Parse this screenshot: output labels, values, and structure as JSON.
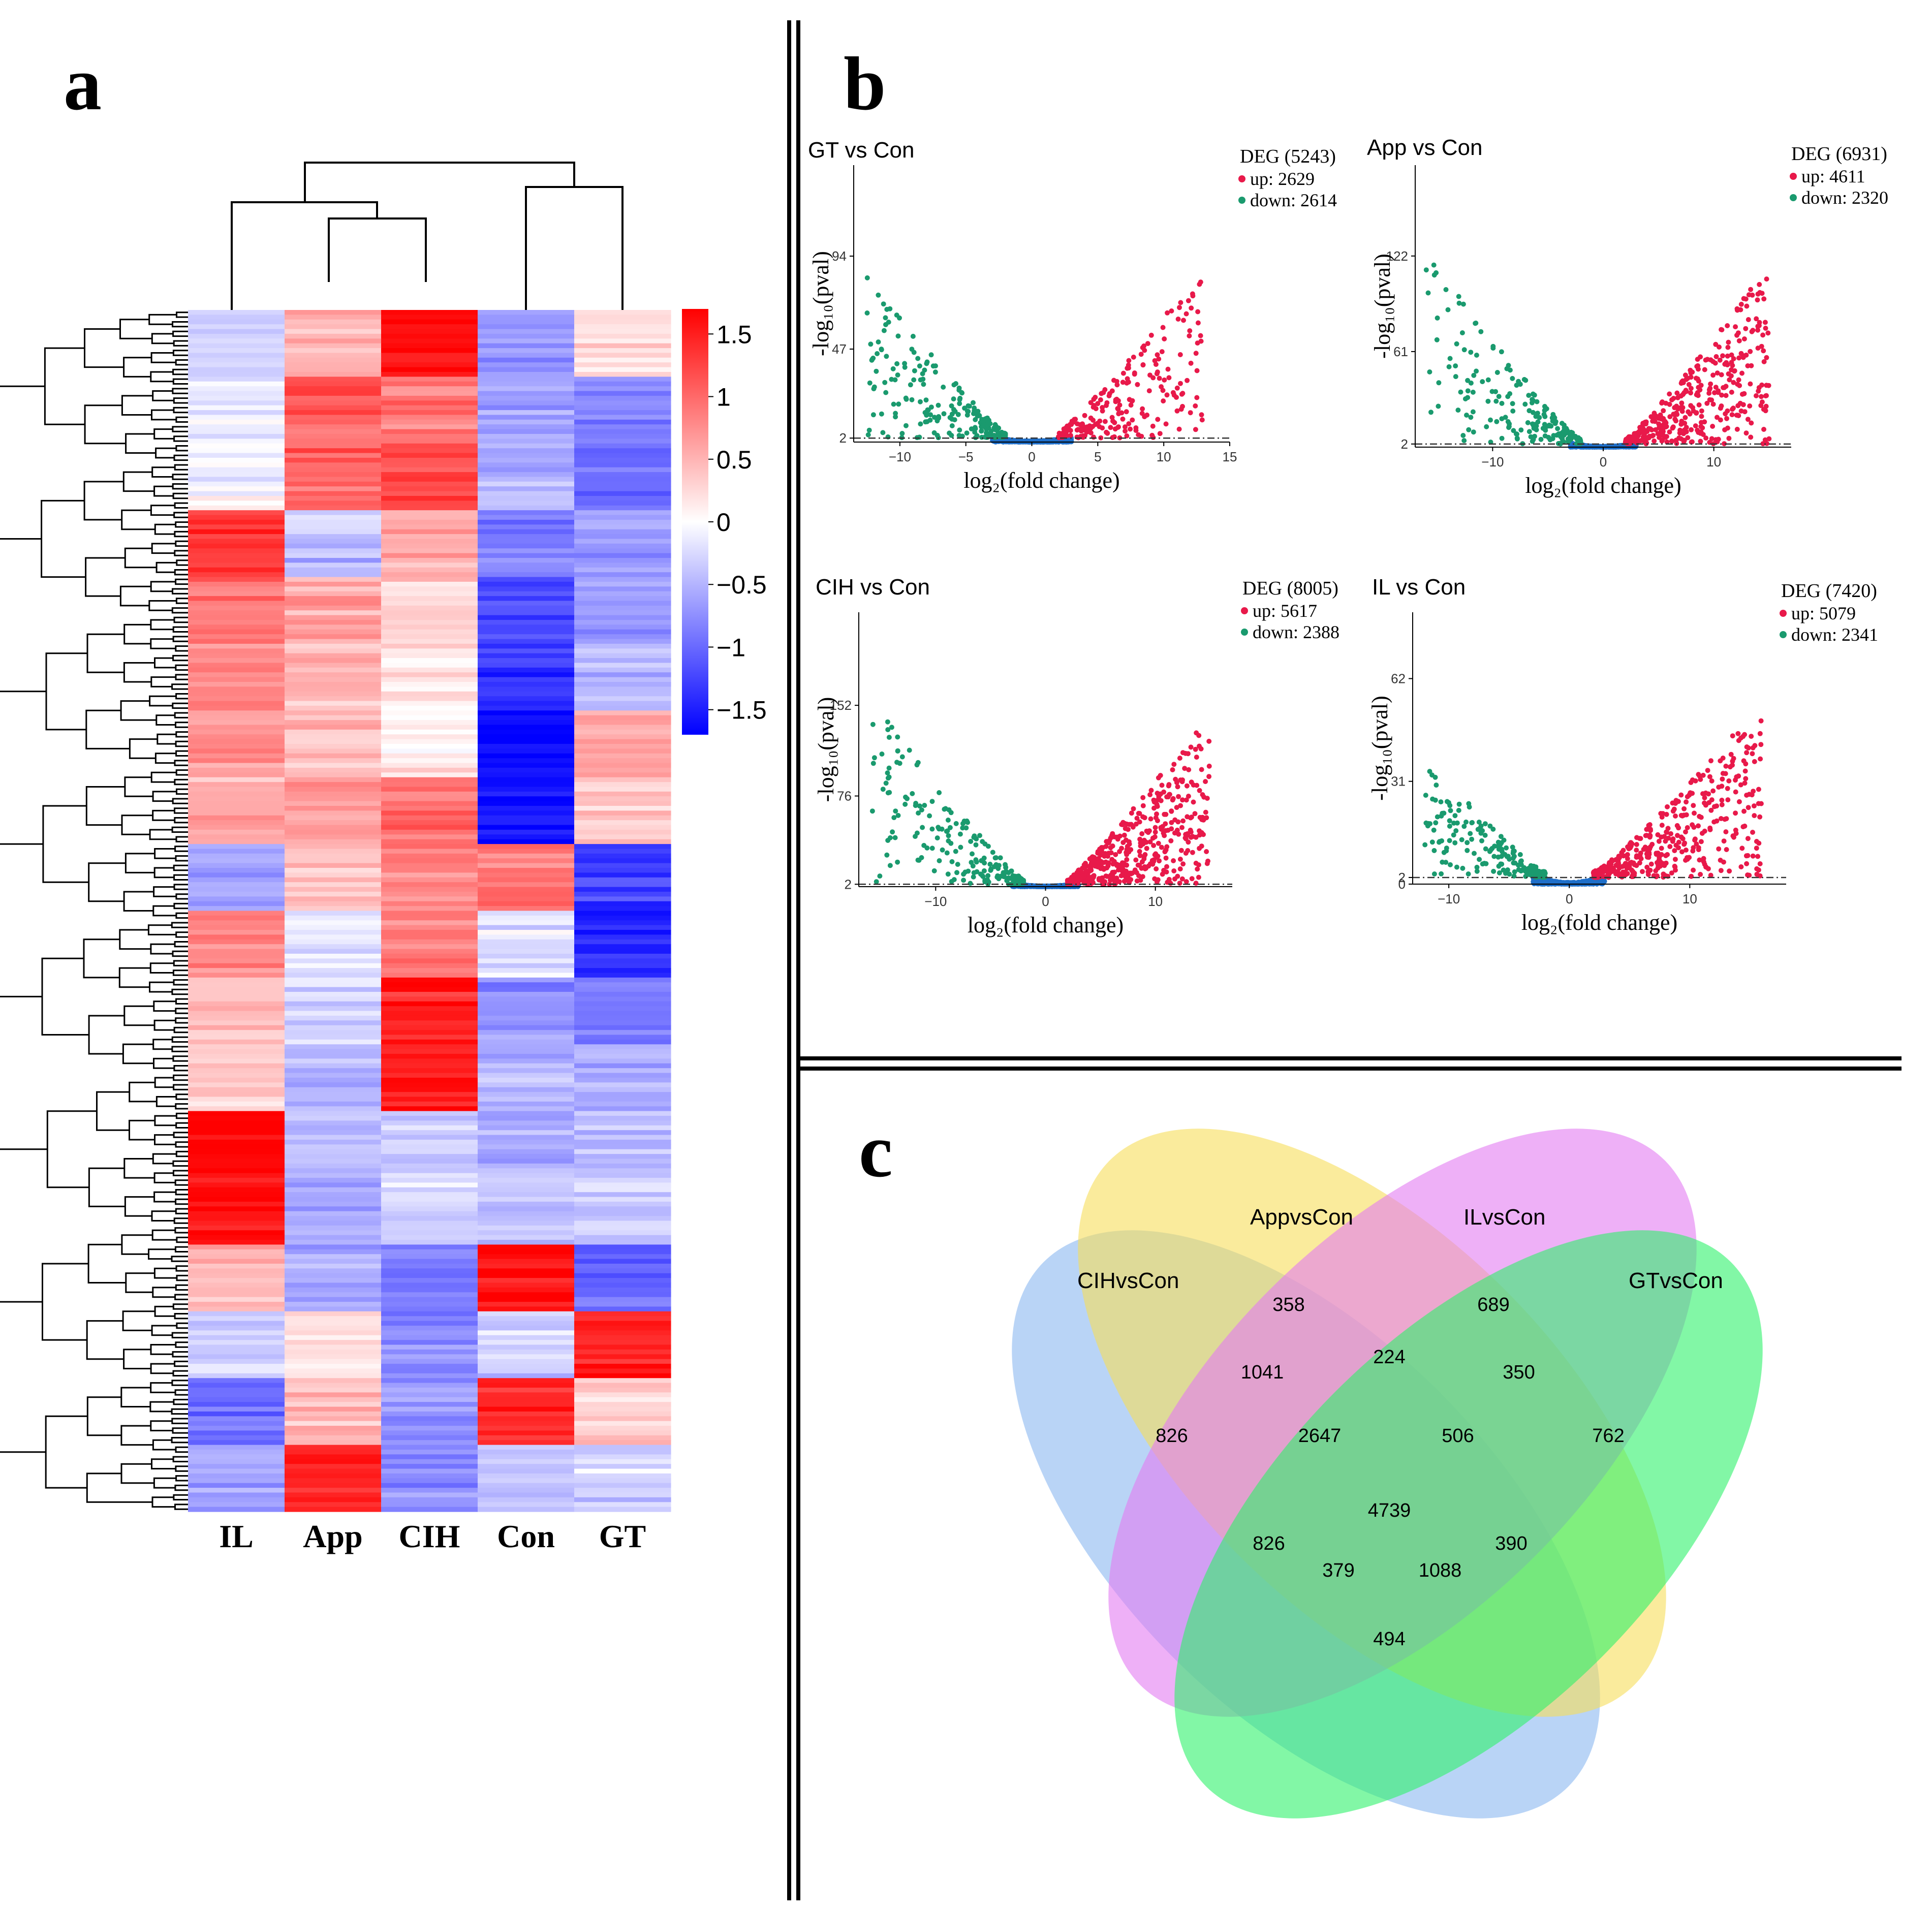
{
  "colors": {
    "heat_high": "#ff0000",
    "heat_mid": "#ffffff",
    "heat_low": "#0000ff",
    "up": "#e8194a",
    "down": "#1a9a6e",
    "nonsig": "#1f6fc9",
    "venn": [
      "#8ab8f0",
      "#f6dd5a",
      "#e27cf2",
      "#2ef26b"
    ]
  },
  "panels": {
    "a": "a",
    "b": "b",
    "c": "c"
  },
  "chart_data": [
    {
      "type": "heatmap",
      "panel": "a",
      "columns": [
        "IL",
        "App",
        "CIH",
        "Con",
        "GT"
      ],
      "colorbar": {
        "ticks": [
          "1.5",
          "1",
          "0.5",
          "0",
          "−0.5",
          "−1",
          "−1.5"
        ],
        "tick_values": [
          1.5,
          1,
          0.5,
          0,
          -0.5,
          -1,
          -1.5
        ],
        "range": [
          -1.7,
          1.7
        ]
      },
      "clusters": [
        {
          "values": [
            -0.3,
            0.5,
            1.6,
            -0.7,
            0.2
          ]
        },
        {
          "values": [
            -0.2,
            1.1,
            0.9,
            -0.6,
            -0.8
          ]
        },
        {
          "values": [
            -0.1,
            1.0,
            1.2,
            -0.5,
            -1.0
          ]
        },
        {
          "values": [
            1.3,
            -0.4,
            0.6,
            -0.8,
            -0.6
          ]
        },
        {
          "values": [
            0.9,
            0.6,
            0.3,
            -1.2,
            -0.7
          ]
        },
        {
          "values": [
            0.8,
            0.5,
            0.2,
            -1.3,
            -0.5
          ]
        },
        {
          "values": [
            0.7,
            0.4,
            0.1,
            -1.7,
            0.6
          ]
        },
        {
          "values": [
            0.6,
            0.7,
            1.0,
            -1.6,
            0.4
          ]
        },
        {
          "values": [
            -0.6,
            0.4,
            0.8,
            0.9,
            -1.3
          ]
        },
        {
          "values": [
            0.8,
            -0.2,
            0.9,
            -0.2,
            -1.4
          ]
        },
        {
          "values": [
            0.4,
            -0.3,
            1.5,
            -0.7,
            -0.9
          ]
        },
        {
          "values": [
            0.3,
            -0.5,
            1.5,
            -0.5,
            -0.6
          ]
        },
        {
          "values": [
            1.7,
            -0.4,
            -0.4,
            -0.6,
            -0.5
          ]
        },
        {
          "values": [
            1.6,
            -0.6,
            -0.3,
            -0.4,
            -0.3
          ]
        },
        {
          "values": [
            0.5,
            -0.6,
            -0.9,
            1.6,
            -1.0
          ]
        },
        {
          "values": [
            -0.3,
            0.2,
            -0.8,
            -0.3,
            1.5
          ]
        },
        {
          "values": [
            -1.0,
            0.5,
            -0.7,
            1.4,
            0.3
          ]
        },
        {
          "values": [
            -0.6,
            1.5,
            -0.8,
            -0.4,
            -0.3
          ]
        }
      ]
    },
    {
      "type": "scatter",
      "panel": "b",
      "title": "GT vs Con",
      "deg_label": "DEG (5243)",
      "up_label": "up: 2629",
      "down_label": "down: 2614",
      "xlabel": "log₂(fold change)",
      "ylabel": "-log₁₀(pval)",
      "xlim": [
        -13.5,
        15
      ],
      "ylim": [
        0,
        140
      ],
      "xticks": [
        -10,
        -5,
        0,
        5,
        10,
        15
      ],
      "xtick_labels": [
        "−10",
        "−5",
        "0",
        "5",
        "10",
        "15"
      ],
      "yticks": [
        2,
        47,
        94
      ],
      "threshold": 2,
      "up_count": 2629,
      "down_count": 2614
    },
    {
      "type": "scatter",
      "panel": "b",
      "title": "App vs Con",
      "deg_label": "DEG (6931)",
      "up_label": "up: 4611",
      "down_label": "down: 2320",
      "xlabel": "log₂(fold change)",
      "ylabel": "-log₁₀(pval)",
      "xlim": [
        -17,
        17
      ],
      "ylim": [
        0,
        180
      ],
      "xticks": [
        -10,
        0,
        10
      ],
      "xtick_labels": [
        "−10",
        "0",
        "10"
      ],
      "yticks": [
        2,
        61,
        122
      ],
      "threshold": 2,
      "up_count": 4611,
      "down_count": 2320
    },
    {
      "type": "scatter",
      "panel": "b",
      "title": "CIH vs Con",
      "deg_label": "DEG (8005)",
      "up_label": "up: 5617",
      "down_label": "down: 2388",
      "xlabel": "log₂(fold change)",
      "ylabel": "-log₁₀(pval)",
      "xlim": [
        -17,
        17
      ],
      "ylim": [
        0,
        230
      ],
      "xticks": [
        -10,
        0,
        10
      ],
      "xtick_labels": [
        "−10",
        "0",
        "10"
      ],
      "yticks": [
        2,
        76,
        152
      ],
      "threshold": 2,
      "up_count": 5617,
      "down_count": 2388
    },
    {
      "type": "scatter",
      "panel": "b",
      "title": "IL vs Con",
      "deg_label": "DEG (7420)",
      "up_label": "up: 5079",
      "down_label": "down: 2341",
      "xlabel": "log₂(fold change)",
      "ylabel": "-log₁₀(pval)",
      "xlim": [
        -13,
        18
      ],
      "ylim": [
        0,
        82
      ],
      "xticks": [
        -10,
        0,
        10
      ],
      "xtick_labels": [
        "−10",
        "0",
        "10"
      ],
      "yticks": [
        0,
        2,
        31,
        62
      ],
      "threshold": 2,
      "up_count": 5079,
      "down_count": 2341
    },
    {
      "type": "venn",
      "panel": "c",
      "sets": [
        "CIHvsCon",
        "AppvsCon",
        "ILvsCon",
        "GTvsCon"
      ],
      "regions": [
        {
          "sets": [
            "CIHvsCon"
          ],
          "value": "826"
        },
        {
          "sets": [
            "AppvsCon"
          ],
          "value": "358"
        },
        {
          "sets": [
            "ILvsCon"
          ],
          "value": "689"
        },
        {
          "sets": [
            "GTvsCon"
          ],
          "value": "762"
        },
        {
          "sets": [
            "CIHvsCon",
            "AppvsCon"
          ],
          "value": "1041"
        },
        {
          "sets": [
            "AppvsCon",
            "ILvsCon"
          ],
          "value": "224"
        },
        {
          "sets": [
            "ILvsCon",
            "GTvsCon"
          ],
          "value": "350"
        },
        {
          "sets": [
            "CIHvsCon",
            "AppvsCon",
            "ILvsCon"
          ],
          "value": "2647"
        },
        {
          "sets": [
            "AppvsCon",
            "ILvsCon",
            "GTvsCon"
          ],
          "value": "506"
        },
        {
          "sets": [
            "CIHvsCon",
            "AppvsCon",
            "ILvsCon",
            "GTvsCon"
          ],
          "value": "4739"
        },
        {
          "sets": [
            "CIHvsCon",
            "ILvsCon"
          ],
          "value": "826"
        },
        {
          "sets": [
            "AppvsCon",
            "GTvsCon"
          ],
          "value": "390"
        },
        {
          "sets": [
            "CIHvsCon",
            "ILvsCon",
            "GTvsCon"
          ],
          "value": "379"
        },
        {
          "sets": [
            "CIHvsCon",
            "AppvsCon",
            "GTvsCon"
          ],
          "value": "1088"
        },
        {
          "sets": [
            "CIHvsCon",
            "GTvsCon"
          ],
          "value": "494"
        }
      ]
    }
  ]
}
